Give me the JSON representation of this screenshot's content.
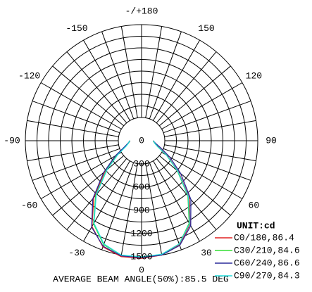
{
  "chart_data": {
    "type": "polar",
    "angles": [
      -90,
      -80,
      -70,
      -60,
      -50,
      -40,
      -30,
      -20,
      -10,
      0,
      10,
      20,
      30,
      40,
      50,
      60,
      70,
      80,
      90
    ],
    "series": [
      {
        "name": "C0/180,86.4",
        "color": "#e02020",
        "values": [
          150,
          170,
          230,
          380,
          620,
          960,
          1280,
          1460,
          1520,
          1520,
          1500,
          1430,
          1250,
          960,
          620,
          380,
          230,
          170,
          150
        ]
      },
      {
        "name": "C30/210,84.6",
        "color": "#33dd33",
        "values": [
          150,
          170,
          220,
          360,
          590,
          920,
          1240,
          1430,
          1500,
          1510,
          1490,
          1420,
          1230,
          930,
          600,
          370,
          220,
          170,
          150
        ]
      },
      {
        "name": "C60/240,86.6",
        "color": "#2a2a9a",
        "values": [
          150,
          175,
          235,
          390,
          640,
          980,
          1290,
          1450,
          1510,
          1510,
          1500,
          1440,
          1270,
          990,
          660,
          420,
          260,
          180,
          150
        ]
      },
      {
        "name": "C90/270,84.3",
        "color": "#22dddd",
        "values": [
          155,
          170,
          215,
          350,
          580,
          910,
          1230,
          1420,
          1500,
          1500,
          1490,
          1420,
          1240,
          940,
          610,
          370,
          220,
          170,
          155
        ]
      }
    ],
    "rlim": [
      0,
      1500
    ],
    "rticks": [
      0,
      300,
      600,
      900,
      1200,
      1500
    ],
    "rminor": [
      150,
      450,
      750,
      1050,
      1350
    ],
    "theta_grid_step": 10,
    "thetaticks": [
      {
        "value": 180,
        "label": "-/+180"
      },
      150,
      120,
      90,
      60,
      30,
      0,
      -30,
      -60,
      -90,
      -120,
      -150
    ],
    "unit": "UNIT:cd",
    "footer": "AVERAGE BEAM ANGLE(50%):85.5 DEG"
  }
}
